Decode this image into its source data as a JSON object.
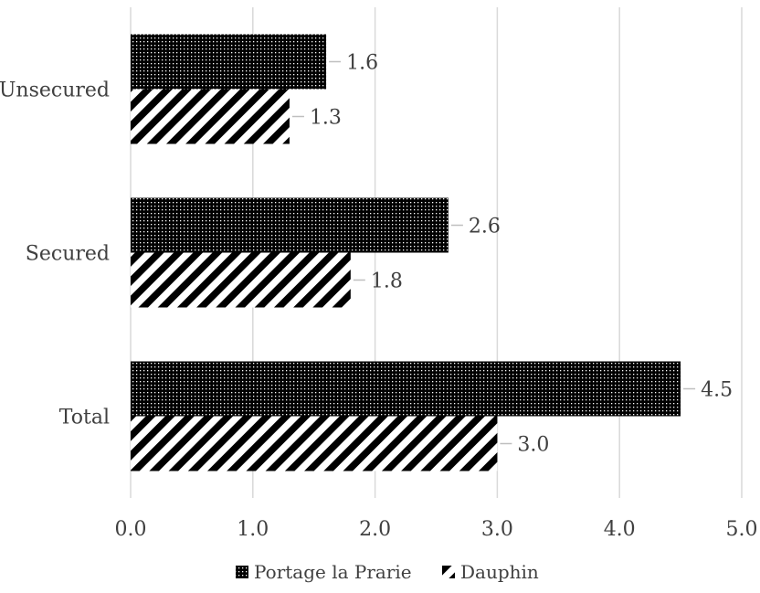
{
  "chart_data": {
    "type": "bar",
    "orientation": "horizontal",
    "categories": [
      "Unsecured",
      "Secured",
      "Total"
    ],
    "series": [
      {
        "name": "Portage la Prarie",
        "values": [
          1.6,
          2.6,
          4.5
        ],
        "pattern": "dots",
        "color": "#000000"
      },
      {
        "name": "Dauphin",
        "values": [
          1.3,
          1.8,
          3.0
        ],
        "pattern": "diagonal-stripes",
        "color": "#000000"
      }
    ],
    "data_labels": [
      [
        "1.6",
        "2.6",
        "4.5"
      ],
      [
        "1.3",
        "1.8",
        "3.0"
      ]
    ],
    "xlim": [
      0,
      5
    ],
    "x_ticks": [
      "0.0",
      "1.0",
      "2.0",
      "3.0",
      "4.0",
      "5.0"
    ],
    "grid": "vertical",
    "legend_position": "bottom",
    "title": "",
    "xlabel": "",
    "ylabel": ""
  }
}
